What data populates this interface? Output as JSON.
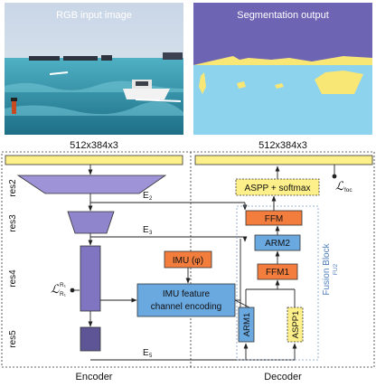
{
  "images": {
    "left_caption": "RGB input image",
    "right_caption": "Segmentation output"
  },
  "dims": {
    "left": "512x384x3",
    "right": "512x384x3"
  },
  "encoder": {
    "stages": [
      "res2",
      "res3",
      "res4",
      "res5"
    ],
    "loss_main": "ℒ",
    "loss_sup": "R₁",
    "loss_sub": "R₁",
    "label": "Encoder"
  },
  "decoder": {
    "aspp_softmax": "ASPP + softmax",
    "ffm": "FFM",
    "arm2": "ARM2",
    "ffm1": "FFM1",
    "arm1": "ARM1",
    "aspp1": "ASPP1",
    "fusion_block": "Fusion Block",
    "fusion_sub": "FU2",
    "loss_main": "ℒ",
    "loss_sub": "foc",
    "label": "Decoder"
  },
  "imu": {
    "imu": "IMU (φ)",
    "encoding_line1": "IMU feature",
    "encoding_line2": "channel encoding"
  },
  "edges": {
    "e2": "E",
    "e2_sub": "2",
    "e3": "E",
    "e3_sub": "3",
    "e5": "E",
    "e5_sub": "5"
  },
  "colors": {
    "encoder_purple": "#9d93d6",
    "encoder_dark": "#5d5596",
    "orange": "#f27d3c",
    "blue_box": "#6aa8e0",
    "yellow": "#fdf08a",
    "seg_purple": "#6d64b4",
    "seg_yellow": "#f9e775",
    "seg_sky": "#8dd3ee"
  }
}
